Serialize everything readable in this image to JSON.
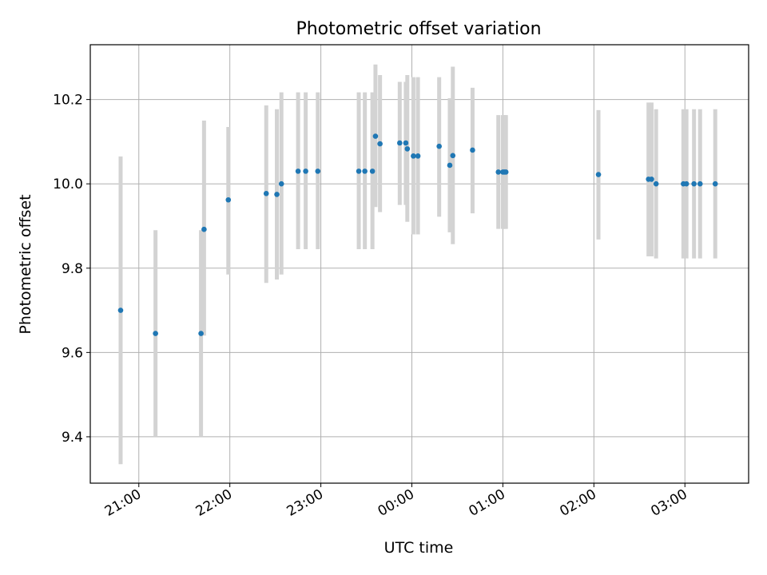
{
  "chart_data": {
    "type": "scatter",
    "title": "Photometric offset variation",
    "xlabel": "UTC time",
    "ylabel": "Photometric offset",
    "x_ticks": [
      "21:00",
      "22:00",
      "23:00",
      "00:00",
      "01:00",
      "02:00",
      "03:00"
    ],
    "y_ticks": [
      "9.4",
      "9.6",
      "9.8",
      "10.0",
      "10.2"
    ],
    "xlim": [
      "20:28",
      "03:42"
    ],
    "ylim": [
      9.29,
      10.33
    ],
    "grid": true,
    "colors": {
      "point": "#1f77b4",
      "errorbar": "#d3d3d3",
      "grid": "#b0b0b0"
    },
    "series": [
      {
        "x": [
          "20:48",
          "21:11",
          "21:41",
          "21:43",
          "21:59",
          "22:24",
          "22:31",
          "22:34",
          "22:45",
          "22:50",
          "22:58",
          "23:25",
          "23:29",
          "23:34",
          "23:36",
          "23:39",
          "23:52",
          "23:56",
          "23:57",
          "24:01",
          "24:04",
          "24:18",
          "24:25",
          "24:27",
          "24:40",
          "24:57",
          "25:00",
          "25:01",
          "25:02",
          "26:03",
          "26:36",
          "26:38",
          "26:41",
          "26:59",
          "27:01",
          "27:06",
          "27:10",
          "27:20"
        ],
        "y": [
          9.7,
          9.645,
          9.645,
          9.892,
          9.962,
          9.977,
          9.975,
          10.0,
          10.03,
          10.03,
          10.03,
          10.03,
          10.03,
          10.03,
          10.113,
          10.095,
          10.097,
          10.097,
          10.083,
          10.066,
          10.066,
          10.089,
          10.044,
          10.067,
          10.08,
          10.028,
          10.028,
          10.028,
          10.028,
          10.022,
          10.011,
          10.011,
          10.0,
          10.0,
          10.0,
          10.0,
          10.0,
          10.0
        ],
        "yerr_low": [
          9.335,
          9.4,
          9.4,
          9.64,
          9.785,
          9.765,
          9.773,
          9.785,
          9.845,
          9.845,
          9.845,
          9.845,
          9.845,
          9.845,
          9.945,
          9.933,
          9.95,
          9.95,
          9.91,
          9.88,
          9.88,
          9.922,
          9.885,
          9.857,
          9.93,
          9.893,
          9.893,
          9.893,
          9.893,
          9.868,
          9.828,
          9.828,
          9.823,
          9.823,
          9.823,
          9.823,
          9.823,
          9.823
        ],
        "yerr_high": [
          10.065,
          9.89,
          9.89,
          10.15,
          10.135,
          10.186,
          10.177,
          10.217,
          10.217,
          10.217,
          10.217,
          10.217,
          10.217,
          10.217,
          10.283,
          10.258,
          10.242,
          10.242,
          10.258,
          10.253,
          10.253,
          10.253,
          10.203,
          10.278,
          10.228,
          10.163,
          10.163,
          10.163,
          10.163,
          10.175,
          10.193,
          10.193,
          10.177,
          10.177,
          10.177,
          10.177,
          10.177,
          10.177
        ]
      }
    ]
  }
}
